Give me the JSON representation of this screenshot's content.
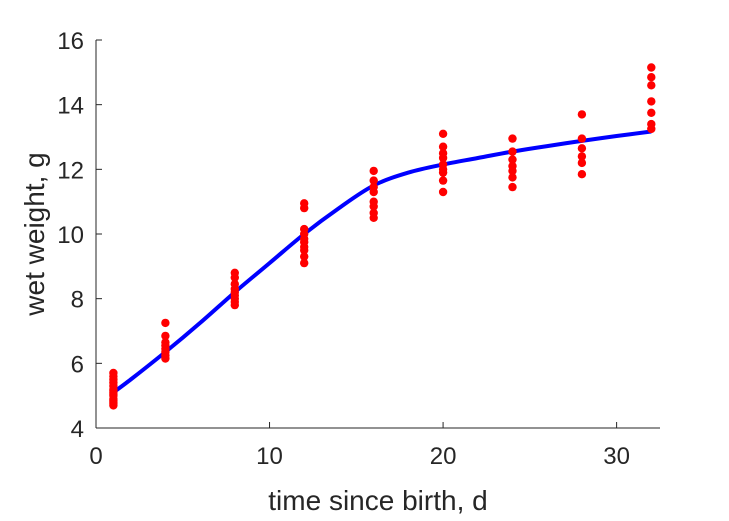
{
  "chart_data": {
    "type": "scatter",
    "title": "",
    "xlabel": "time since birth, d",
    "ylabel": "wet weight, g",
    "xlim": [
      0,
      32.5
    ],
    "ylim": [
      4,
      16
    ],
    "xticks": [
      0,
      10,
      20,
      30
    ],
    "yticks": [
      4,
      6,
      8,
      10,
      12,
      14,
      16
    ],
    "grid": false,
    "legend": "none",
    "colors": {
      "points": "#ff0000",
      "fit": "#0000ff",
      "axis": "#262626"
    },
    "series": [
      {
        "kind": "points",
        "points": [
          [
            1,
            5.7
          ],
          [
            1,
            5.6
          ],
          [
            1,
            5.5
          ],
          [
            1,
            5.4
          ],
          [
            1,
            5.3
          ],
          [
            1,
            5.2
          ],
          [
            1,
            5.15
          ],
          [
            1,
            5.1
          ],
          [
            1,
            5.05
          ],
          [
            1,
            5.0
          ],
          [
            1,
            4.9
          ],
          [
            1,
            4.85
          ],
          [
            1,
            4.8
          ],
          [
            1,
            4.75
          ],
          [
            1,
            4.7
          ],
          [
            4,
            7.25
          ],
          [
            4,
            6.85
          ],
          [
            4,
            6.65
          ],
          [
            4,
            6.55
          ],
          [
            4,
            6.45
          ],
          [
            4,
            6.35
          ],
          [
            4,
            6.25
          ],
          [
            4,
            6.15
          ],
          [
            8,
            8.8
          ],
          [
            8,
            8.65
          ],
          [
            8,
            8.45
          ],
          [
            8,
            8.3
          ],
          [
            8,
            8.2
          ],
          [
            8,
            8.1
          ],
          [
            8,
            8.0
          ],
          [
            8,
            7.9
          ],
          [
            8,
            7.8
          ],
          [
            12,
            10.95
          ],
          [
            12,
            10.8
          ],
          [
            12,
            10.15
          ],
          [
            12,
            10.0
          ],
          [
            12,
            9.85
          ],
          [
            12,
            9.75
          ],
          [
            12,
            9.6
          ],
          [
            12,
            9.5
          ],
          [
            12,
            9.3
          ],
          [
            12,
            9.1
          ],
          [
            16,
            11.95
          ],
          [
            16,
            11.65
          ],
          [
            16,
            11.45
          ],
          [
            16,
            11.3
          ],
          [
            16,
            11.0
          ],
          [
            16,
            10.85
          ],
          [
            16,
            10.65
          ],
          [
            16,
            10.5
          ],
          [
            20,
            13.1
          ],
          [
            20,
            12.7
          ],
          [
            20,
            12.5
          ],
          [
            20,
            12.35
          ],
          [
            20,
            12.15
          ],
          [
            20,
            12.0
          ],
          [
            20,
            11.9
          ],
          [
            20,
            11.65
          ],
          [
            20,
            11.3
          ],
          [
            24,
            12.95
          ],
          [
            24,
            12.55
          ],
          [
            24,
            12.3
          ],
          [
            24,
            12.1
          ],
          [
            24,
            11.95
          ],
          [
            24,
            11.75
          ],
          [
            24,
            11.45
          ],
          [
            28,
            13.7
          ],
          [
            28,
            12.95
          ],
          [
            28,
            12.65
          ],
          [
            28,
            12.4
          ],
          [
            28,
            12.2
          ],
          [
            28,
            11.85
          ],
          [
            32,
            15.15
          ],
          [
            32,
            14.85
          ],
          [
            32,
            14.6
          ],
          [
            32,
            14.1
          ],
          [
            32,
            13.75
          ],
          [
            32,
            13.4
          ],
          [
            32,
            13.25
          ]
        ]
      },
      {
        "kind": "line",
        "points": [
          [
            1,
            5.1
          ],
          [
            2,
            5.5
          ],
          [
            4,
            6.35
          ],
          [
            6,
            7.25
          ],
          [
            8,
            8.2
          ],
          [
            10,
            9.1
          ],
          [
            12,
            10.0
          ],
          [
            14,
            10.8
          ],
          [
            16,
            11.5
          ],
          [
            18,
            11.9
          ],
          [
            20,
            12.15
          ],
          [
            22,
            12.35
          ],
          [
            24,
            12.55
          ],
          [
            26,
            12.72
          ],
          [
            28,
            12.88
          ],
          [
            30,
            13.03
          ],
          [
            32,
            13.17
          ]
        ]
      }
    ]
  }
}
